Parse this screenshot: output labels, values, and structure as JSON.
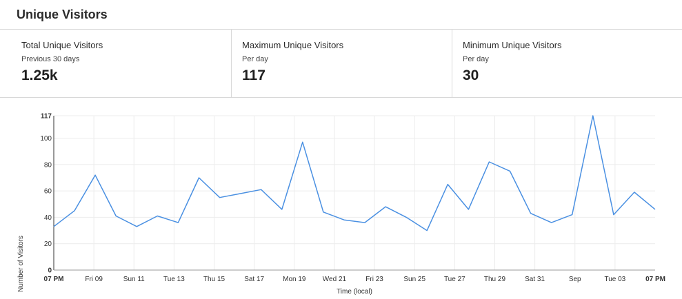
{
  "header": {
    "title": "Unique Visitors"
  },
  "stats": [
    {
      "label": "Total Unique Visitors",
      "sub": "Previous 30 days",
      "value": "1.25k"
    },
    {
      "label": "Maximum Unique Visitors",
      "sub": "Per day",
      "value": "117"
    },
    {
      "label": "Minimum Unique Visitors",
      "sub": "Per day",
      "value": "30"
    }
  ],
  "chart_data": {
    "type": "line",
    "title": "",
    "xlabel": "Time (local)",
    "ylabel": "Number of Visitors",
    "ylim": [
      0,
      117
    ],
    "yticks": [
      0,
      20,
      40,
      60,
      80,
      100,
      117
    ],
    "grid": true,
    "xticks": [
      {
        "label": "07 PM",
        "bold": true
      },
      {
        "label": "Fri 09",
        "bold": false
      },
      {
        "label": "Sun 11",
        "bold": false
      },
      {
        "label": "Tue 13",
        "bold": false
      },
      {
        "label": "Thu 15",
        "bold": false
      },
      {
        "label": "Sat 17",
        "bold": false
      },
      {
        "label": "Mon 19",
        "bold": false
      },
      {
        "label": "Wed 21",
        "bold": false
      },
      {
        "label": "Fri 23",
        "bold": false
      },
      {
        "label": "Sun 25",
        "bold": false
      },
      {
        "label": "Tue 27",
        "bold": false
      },
      {
        "label": "Thu 29",
        "bold": false
      },
      {
        "label": "Sat 31",
        "bold": false
      },
      {
        "label": "Sep",
        "bold": false
      },
      {
        "label": "Tue 03",
        "bold": false
      },
      {
        "label": "07 PM",
        "bold": true
      }
    ],
    "series": [
      {
        "color": "#4a90e2",
        "values": [
          33,
          45,
          72,
          41,
          33,
          41,
          36,
          70,
          55,
          58,
          61,
          46,
          97,
          44,
          38,
          36,
          48,
          40,
          30,
          65,
          46,
          82,
          75,
          43,
          36,
          42,
          117,
          42,
          59,
          46
        ]
      }
    ]
  }
}
